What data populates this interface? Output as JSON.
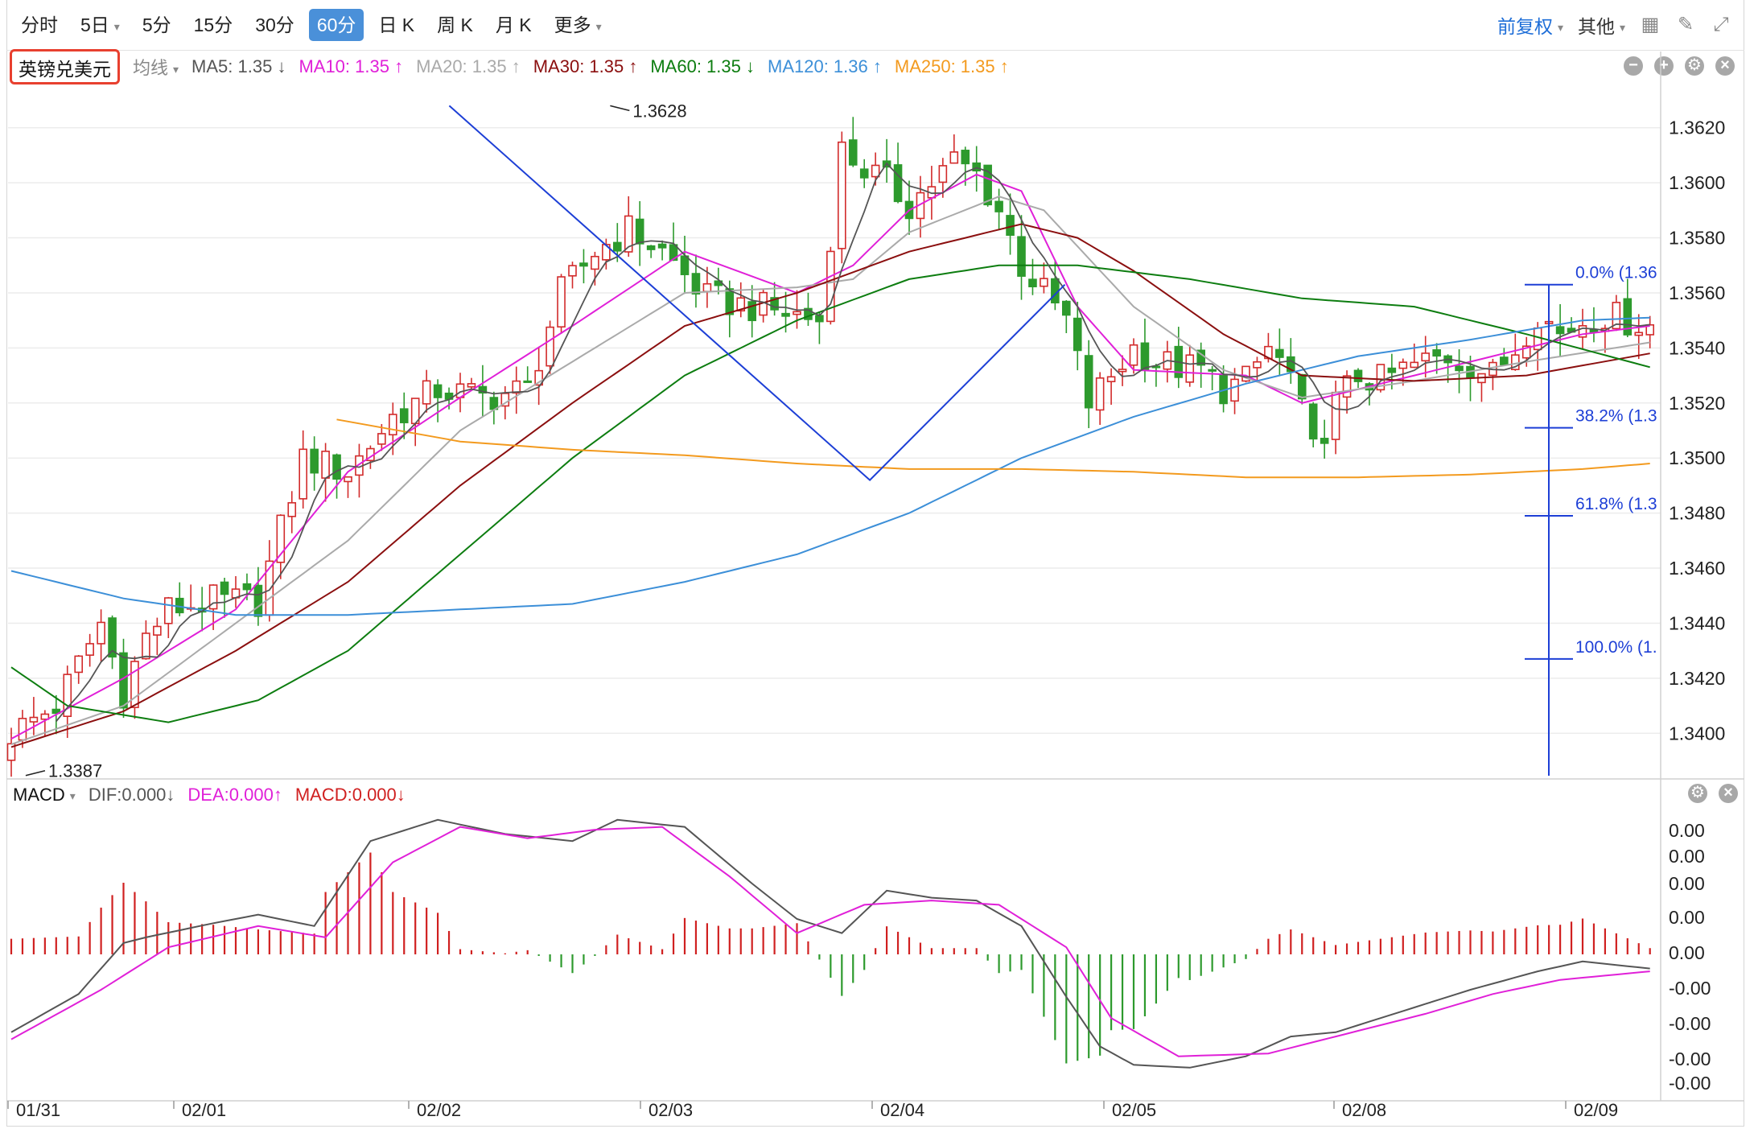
{
  "toolbar": {
    "periods": [
      "分时",
      "5日",
      "5分",
      "15分",
      "30分",
      "60分",
      "日 K",
      "周 K",
      "月 K",
      "更多"
    ],
    "active": "60分",
    "adjust_label": "前复权",
    "other_label": "其他"
  },
  "instrument": {
    "name": "英镑兑美元"
  },
  "ma_legend": {
    "type_label": "均线",
    "items": [
      {
        "label": "MA5: 1.35 ↓",
        "color": "#555555"
      },
      {
        "label": "MA10: 1.35 ↑",
        "color": "#e020d8"
      },
      {
        "label": "MA20: 1.35 ↑",
        "color": "#aaaaaa"
      },
      {
        "label": "MA30: 1.35 ↑",
        "color": "#8b0f0f"
      },
      {
        "label": "MA60: 1.35 ↓",
        "color": "#0d7d10"
      },
      {
        "label": "MA120: 1.36 ↑",
        "color": "#3c8fd8"
      },
      {
        "label": "MA250: 1.35 ↑",
        "color": "#f39a1e"
      }
    ]
  },
  "macd_legend": {
    "name": "MACD",
    "items": [
      {
        "label": "DIF:0.000↓",
        "color": "#555555"
      },
      {
        "label": "DEA:0.000↑",
        "color": "#e020d8"
      },
      {
        "label": "MACD:0.000↓",
        "color": "#d02020"
      }
    ]
  },
  "chart_data": [
    {
      "type": "candlestick",
      "ylim": [
        1.3384,
        1.3636
      ],
      "y_ticks": [
        1.34,
        1.342,
        1.344,
        1.346,
        1.348,
        1.35,
        1.352,
        1.354,
        1.356,
        1.358,
        1.36,
        1.362
      ],
      "x_labels": [
        "01/31",
        "02/01",
        "02/02",
        "02/03",
        "02/04",
        "02/05",
        "02/08",
        "02/09"
      ],
      "annotations": {
        "high_label": "1.3628",
        "low_label": "1.3387"
      },
      "fibonacci": [
        {
          "label": "0.0% (1.36",
          "value": 1.3563
        },
        {
          "label": "38.2% (1.3",
          "value": 1.3511
        },
        {
          "label": "61.8% (1.3",
          "value": 1.3479
        },
        {
          "label": "100.0% (1.",
          "value": 1.3427
        }
      ],
      "trendline": [
        [
          0.2527,
          1.3628
        ],
        [
          0.4936,
          1.3492
        ],
        [
          0.6053,
          1.3563
        ]
      ],
      "grid": true,
      "colors": {
        "up": "#d22b2b",
        "down": "#2d9a2d",
        "grid": "#ececec",
        "trend": "#1d3fd6"
      },
      "waypoints": [
        [
          0,
          1.34
        ],
        [
          4,
          1.341
        ],
        [
          8,
          1.344
        ],
        [
          10,
          1.3415
        ],
        [
          12,
          1.3435
        ],
        [
          14,
          1.3445
        ],
        [
          18,
          1.3448
        ],
        [
          22,
          1.3448
        ],
        [
          26,
          1.35
        ],
        [
          30,
          1.3495
        ],
        [
          34,
          1.3515
        ],
        [
          38,
          1.3525
        ],
        [
          42,
          1.3522
        ],
        [
          46,
          1.3525
        ],
        [
          49,
          1.356
        ],
        [
          52,
          1.3575
        ],
        [
          55,
          1.3583
        ],
        [
          58,
          1.3575
        ],
        [
          62,
          1.3558
        ],
        [
          66,
          1.3555
        ],
        [
          70,
          1.3552
        ],
        [
          72,
          1.355
        ],
        [
          74,
          1.3612
        ],
        [
          76,
          1.3605
        ],
        [
          78,
          1.36
        ],
        [
          80,
          1.3592
        ],
        [
          82,
          1.36
        ],
        [
          84,
          1.3608
        ],
        [
          86,
          1.3603
        ],
        [
          88,
          1.359
        ],
        [
          90,
          1.357
        ],
        [
          92,
          1.356
        ],
        [
          94,
          1.355
        ],
        [
          96,
          1.352
        ],
        [
          98,
          1.353
        ],
        [
          100,
          1.354
        ],
        [
          102,
          1.3535
        ],
        [
          104,
          1.3533
        ],
        [
          106,
          1.3532
        ],
        [
          108,
          1.3525
        ],
        [
          110,
          1.3528
        ],
        [
          112,
          1.354
        ],
        [
          114,
          1.353
        ],
        [
          116,
          1.3502
        ],
        [
          118,
          1.352
        ],
        [
          120,
          1.353
        ],
        [
          122,
          1.3528
        ],
        [
          124,
          1.3532
        ],
        [
          126,
          1.3535
        ],
        [
          128,
          1.3537
        ],
        [
          130,
          1.3534
        ],
        [
          132,
          1.353
        ],
        [
          134,
          1.354
        ],
        [
          136,
          1.3553
        ],
        [
          138,
          1.3545
        ],
        [
          140,
          1.355
        ],
        [
          142,
          1.3552
        ],
        [
          144,
          1.355
        ],
        [
          146,
          1.3548
        ]
      ],
      "ma": {
        "MA10": [
          [
            0,
            1.3398
          ],
          [
            10,
            1.342
          ],
          [
            20,
            1.3445
          ],
          [
            30,
            1.3495
          ],
          [
            40,
            1.3522
          ],
          [
            50,
            1.3548
          ],
          [
            60,
            1.3575
          ],
          [
            70,
            1.356
          ],
          [
            75,
            1.357
          ],
          [
            80,
            1.359
          ],
          [
            86,
            1.3603
          ],
          [
            90,
            1.3597
          ],
          [
            95,
            1.3555
          ],
          [
            100,
            1.3532
          ],
          [
            110,
            1.353
          ],
          [
            115,
            1.352
          ],
          [
            120,
            1.3525
          ],
          [
            130,
            1.3535
          ],
          [
            140,
            1.3545
          ],
          [
            146,
            1.3548
          ]
        ],
        "MA20": [
          [
            0,
            1.3396
          ],
          [
            10,
            1.341
          ],
          [
            20,
            1.344
          ],
          [
            30,
            1.347
          ],
          [
            40,
            1.351
          ],
          [
            50,
            1.3535
          ],
          [
            60,
            1.356
          ],
          [
            70,
            1.3562
          ],
          [
            75,
            1.3565
          ],
          [
            80,
            1.3582
          ],
          [
            88,
            1.3595
          ],
          [
            92,
            1.359
          ],
          [
            100,
            1.3555
          ],
          [
            108,
            1.3532
          ],
          [
            115,
            1.3522
          ],
          [
            125,
            1.3528
          ],
          [
            135,
            1.3535
          ],
          [
            146,
            1.3542
          ]
        ],
        "MA30": [
          [
            0,
            1.3395
          ],
          [
            10,
            1.3408
          ],
          [
            20,
            1.343
          ],
          [
            30,
            1.3455
          ],
          [
            40,
            1.349
          ],
          [
            50,
            1.352
          ],
          [
            60,
            1.3548
          ],
          [
            70,
            1.356
          ],
          [
            80,
            1.3575
          ],
          [
            90,
            1.3585
          ],
          [
            95,
            1.358
          ],
          [
            100,
            1.3568
          ],
          [
            108,
            1.3545
          ],
          [
            115,
            1.353
          ],
          [
            125,
            1.3528
          ],
          [
            135,
            1.353
          ],
          [
            146,
            1.3538
          ]
        ],
        "MA60": [
          [
            0,
            1.3424
          ],
          [
            5,
            1.341
          ],
          [
            14,
            1.3404
          ],
          [
            22,
            1.3412
          ],
          [
            30,
            1.343
          ],
          [
            40,
            1.3465
          ],
          [
            50,
            1.35
          ],
          [
            60,
            1.353
          ],
          [
            70,
            1.355
          ],
          [
            80,
            1.3565
          ],
          [
            88,
            1.357
          ],
          [
            95,
            1.357
          ],
          [
            105,
            1.3565
          ],
          [
            115,
            1.3558
          ],
          [
            125,
            1.3555
          ],
          [
            135,
            1.3545
          ],
          [
            146,
            1.3533
          ]
        ],
        "MA120": [
          [
            0,
            1.3459
          ],
          [
            10,
            1.3449
          ],
          [
            20,
            1.3443
          ],
          [
            30,
            1.3443
          ],
          [
            40,
            1.3445
          ],
          [
            50,
            1.3447
          ],
          [
            60,
            1.3455
          ],
          [
            70,
            1.3465
          ],
          [
            80,
            1.348
          ],
          [
            90,
            1.35
          ],
          [
            100,
            1.3515
          ],
          [
            110,
            1.3527
          ],
          [
            120,
            1.3537
          ],
          [
            130,
            1.3543
          ],
          [
            140,
            1.355
          ],
          [
            146,
            1.3551
          ]
        ],
        "MA250": [
          [
            29,
            1.3514
          ],
          [
            40,
            1.3506
          ],
          [
            50,
            1.3503
          ],
          [
            60,
            1.3501
          ],
          [
            70,
            1.3498
          ],
          [
            80,
            1.3496
          ],
          [
            90,
            1.3496
          ],
          [
            100,
            1.3495
          ],
          [
            110,
            1.3493
          ],
          [
            120,
            1.3493
          ],
          [
            130,
            1.3494
          ],
          [
            140,
            1.3496
          ],
          [
            146,
            1.3498
          ]
        ]
      }
    },
    {
      "type": "macd",
      "ylim": [
        -1,
        1
      ],
      "y_tick_labels": [
        "0.00",
        "0.00",
        "0.00",
        "0.00",
        "0.00",
        "-0.00",
        "-0.00",
        "-0.00",
        "-0.00"
      ],
      "dif": [
        [
          0,
          -0.55
        ],
        [
          6,
          -0.28
        ],
        [
          10,
          0.08
        ],
        [
          12,
          0.12
        ],
        [
          18,
          0.22
        ],
        [
          22,
          0.28
        ],
        [
          27,
          0.2
        ],
        [
          32,
          0.8
        ],
        [
          38,
          0.95
        ],
        [
          44,
          0.85
        ],
        [
          50,
          0.8
        ],
        [
          54,
          0.95
        ],
        [
          60,
          0.9
        ],
        [
          66,
          0.5
        ],
        [
          70,
          0.25
        ],
        [
          74,
          0.15
        ],
        [
          78,
          0.45
        ],
        [
          82,
          0.4
        ],
        [
          86,
          0.38
        ],
        [
          90,
          0.2
        ],
        [
          94,
          -0.3
        ],
        [
          97,
          -0.65
        ],
        [
          100,
          -0.78
        ],
        [
          105,
          -0.8
        ],
        [
          110,
          -0.72
        ],
        [
          114,
          -0.58
        ],
        [
          118,
          -0.55
        ],
        [
          124,
          -0.4
        ],
        [
          130,
          -0.25
        ],
        [
          136,
          -0.12
        ],
        [
          140,
          -0.05
        ],
        [
          146,
          -0.1
        ]
      ],
      "dea": [
        [
          0,
          -0.6
        ],
        [
          8,
          -0.25
        ],
        [
          14,
          0.05
        ],
        [
          22,
          0.2
        ],
        [
          28,
          0.12
        ],
        [
          34,
          0.65
        ],
        [
          40,
          0.9
        ],
        [
          46,
          0.82
        ],
        [
          52,
          0.88
        ],
        [
          58,
          0.9
        ],
        [
          64,
          0.55
        ],
        [
          70,
          0.15
        ],
        [
          76,
          0.35
        ],
        [
          82,
          0.38
        ],
        [
          88,
          0.35
        ],
        [
          94,
          0.05
        ],
        [
          98,
          -0.45
        ],
        [
          104,
          -0.72
        ],
        [
          112,
          -0.7
        ],
        [
          118,
          -0.58
        ],
        [
          126,
          -0.42
        ],
        [
          132,
          -0.28
        ],
        [
          138,
          -0.18
        ],
        [
          146,
          -0.12
        ]
      ]
    }
  ]
}
